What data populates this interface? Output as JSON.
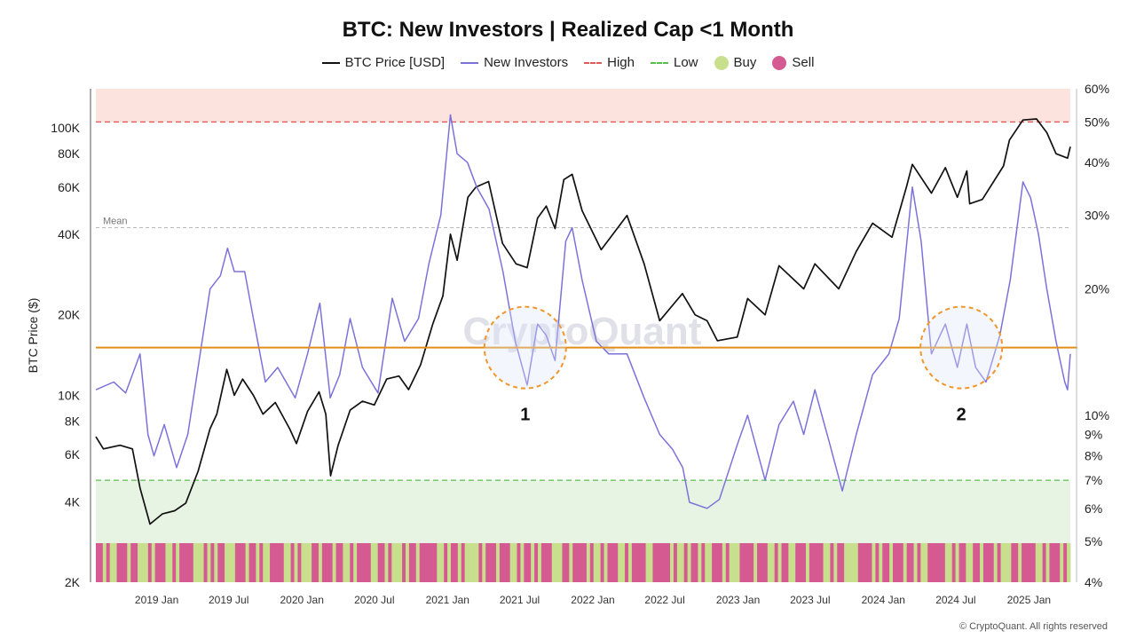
{
  "chart_data": {
    "type": "line",
    "title": "BTC: New Investors | Realized Cap <1 Month",
    "ylabel": "BTC Price ($)",
    "y_left_scale": "log",
    "y_left_range": [
      2000,
      140000
    ],
    "y_left_ticks": [
      {
        "v": 100000,
        "label": "100K"
      },
      {
        "v": 80000,
        "label": "80K"
      },
      {
        "v": 60000,
        "label": "60K"
      },
      {
        "v": 40000,
        "label": "40K"
      },
      {
        "v": 20000,
        "label": "20K"
      },
      {
        "v": 10000,
        "label": "10K"
      },
      {
        "v": 8000,
        "label": "8K"
      },
      {
        "v": 6000,
        "label": "6K"
      },
      {
        "v": 4000,
        "label": "4K"
      },
      {
        "v": 2000,
        "label": "2K"
      }
    ],
    "y_right_scale": "log",
    "y_right_range": [
      4,
      60
    ],
    "y_right_ticks": [
      {
        "v": 60,
        "label": "60%"
      },
      {
        "v": 50,
        "label": "50%"
      },
      {
        "v": 40,
        "label": "40%"
      },
      {
        "v": 30,
        "label": "30%"
      },
      {
        "v": 20,
        "label": "20%"
      },
      {
        "v": 10,
        "label": "10%"
      },
      {
        "v": 9,
        "label": "9%"
      },
      {
        "v": 8,
        "label": "8%"
      },
      {
        "v": 7,
        "label": "7%"
      },
      {
        "v": 6,
        "label": "6%"
      },
      {
        "v": 5,
        "label": "5%"
      },
      {
        "v": 4,
        "label": "4%"
      }
    ],
    "x_range": [
      "2018-08-01",
      "2025-04-15"
    ],
    "x_ticks": [
      {
        "date": "2019-01-01",
        "label": "2019 Jan"
      },
      {
        "date": "2019-07-01",
        "label": "2019 Jul"
      },
      {
        "date": "2020-01-01",
        "label": "2020 Jan"
      },
      {
        "date": "2020-07-01",
        "label": "2020 Jul"
      },
      {
        "date": "2021-01-01",
        "label": "2021 Jan"
      },
      {
        "date": "2021-07-01",
        "label": "2021 Jul"
      },
      {
        "date": "2022-01-01",
        "label": "2022 Jan"
      },
      {
        "date": "2022-07-01",
        "label": "2022 Jul"
      },
      {
        "date": "2023-01-01",
        "label": "2023 Jan"
      },
      {
        "date": "2023-07-01",
        "label": "2023 Jul"
      },
      {
        "date": "2024-01-01",
        "label": "2024 Jan"
      },
      {
        "date": "2024-07-01",
        "label": "2024 Jul"
      },
      {
        "date": "2025-01-01",
        "label": "2025 Jan"
      }
    ],
    "legend": [
      {
        "label": "BTC Price [USD]",
        "kind": "line",
        "color": "#111111"
      },
      {
        "label": "New Investors",
        "kind": "line",
        "color": "#7b72d9"
      },
      {
        "label": "High",
        "kind": "dash",
        "color": "#e05a5a"
      },
      {
        "label": "Low",
        "kind": "dash",
        "color": "#58c04a"
      },
      {
        "label": "Buy",
        "kind": "dot",
        "color": "#c8e08e"
      },
      {
        "label": "Sell",
        "kind": "dot",
        "color": "#d65a92"
      }
    ],
    "series": [
      {
        "name": "BTC Price [USD]",
        "axis": "left",
        "color": "#111111",
        "points": [
          [
            "2018-08-01",
            7000
          ],
          [
            "2018-08-20",
            6300
          ],
          [
            "2018-10-01",
            6500
          ],
          [
            "2018-11-01",
            6300
          ],
          [
            "2018-11-20",
            4500
          ],
          [
            "2018-12-15",
            3300
          ],
          [
            "2019-01-15",
            3600
          ],
          [
            "2019-02-15",
            3700
          ],
          [
            "2019-03-15",
            3950
          ],
          [
            "2019-04-15",
            5200
          ],
          [
            "2019-05-15",
            7500
          ],
          [
            "2019-06-01",
            8500
          ],
          [
            "2019-06-26",
            12500
          ],
          [
            "2019-07-15",
            10000
          ],
          [
            "2019-08-05",
            11500
          ],
          [
            "2019-09-01",
            10000
          ],
          [
            "2019-09-25",
            8500
          ],
          [
            "2019-10-26",
            9400
          ],
          [
            "2019-12-01",
            7500
          ],
          [
            "2019-12-18",
            6600
          ],
          [
            "2020-01-15",
            8700
          ],
          [
            "2020-02-13",
            10300
          ],
          [
            "2020-03-01",
            8500
          ],
          [
            "2020-03-13",
            5000
          ],
          [
            "2020-04-01",
            6500
          ],
          [
            "2020-05-01",
            8800
          ],
          [
            "2020-06-01",
            9500
          ],
          [
            "2020-07-01",
            9200
          ],
          [
            "2020-08-01",
            11500
          ],
          [
            "2020-09-01",
            11800
          ],
          [
            "2020-09-25",
            10500
          ],
          [
            "2020-10-25",
            13000
          ],
          [
            "2020-11-25",
            18500
          ],
          [
            "2020-12-20",
            23500
          ],
          [
            "2021-01-08",
            40000
          ],
          [
            "2021-01-25",
            32000
          ],
          [
            "2021-02-21",
            55000
          ],
          [
            "2021-03-13",
            60000
          ],
          [
            "2021-04-14",
            63000
          ],
          [
            "2021-05-19",
            37000
          ],
          [
            "2021-06-22",
            31000
          ],
          [
            "2021-07-20",
            30000
          ],
          [
            "2021-08-15",
            46000
          ],
          [
            "2021-09-06",
            51000
          ],
          [
            "2021-09-28",
            42000
          ],
          [
            "2021-10-20",
            64000
          ],
          [
            "2021-11-10",
            67000
          ],
          [
            "2021-12-05",
            49000
          ],
          [
            "2022-01-22",
            35000
          ],
          [
            "2022-03-28",
            47000
          ],
          [
            "2022-05-10",
            31000
          ],
          [
            "2022-06-18",
            19000
          ],
          [
            "2022-08-14",
            24000
          ],
          [
            "2022-09-15",
            20000
          ],
          [
            "2022-10-15",
            19000
          ],
          [
            "2022-11-10",
            16000
          ],
          [
            "2022-12-30",
            16500
          ],
          [
            "2023-01-25",
            23000
          ],
          [
            "2023-03-10",
            20000
          ],
          [
            "2023-04-14",
            30500
          ],
          [
            "2023-06-15",
            25000
          ],
          [
            "2023-07-13",
            31000
          ],
          [
            "2023-09-11",
            25000
          ],
          [
            "2023-10-25",
            34500
          ],
          [
            "2023-12-05",
            44000
          ],
          [
            "2024-01-23",
            39000
          ],
          [
            "2024-02-28",
            60000
          ],
          [
            "2024-03-14",
            73000
          ],
          [
            "2024-05-01",
            57000
          ],
          [
            "2024-06-05",
            71000
          ],
          [
            "2024-07-05",
            55000
          ],
          [
            "2024-07-29",
            69000
          ],
          [
            "2024-08-05",
            52000
          ],
          [
            "2024-09-06",
            54000
          ],
          [
            "2024-10-29",
            72000
          ],
          [
            "2024-11-13",
            90000
          ],
          [
            "2024-12-17",
            107000
          ],
          [
            "2025-01-20",
            108000
          ],
          [
            "2025-02-15",
            96000
          ],
          [
            "2025-03-10",
            80000
          ],
          [
            "2025-04-08",
            77000
          ],
          [
            "2025-04-15",
            85000
          ]
        ]
      },
      {
        "name": "New Investors",
        "axis": "right",
        "color": "#7b72d9",
        "points": [
          [
            "2018-08-01",
            11.5
          ],
          [
            "2018-09-15",
            12
          ],
          [
            "2018-10-15",
            11.3
          ],
          [
            "2018-11-20",
            14
          ],
          [
            "2018-12-10",
            9
          ],
          [
            "2018-12-25",
            8
          ],
          [
            "2019-01-20",
            9.5
          ],
          [
            "2019-02-20",
            7.5
          ],
          [
            "2019-03-20",
            9
          ],
          [
            "2019-04-15",
            13
          ],
          [
            "2019-05-15",
            20
          ],
          [
            "2019-06-10",
            21.5
          ],
          [
            "2019-06-28",
            25
          ],
          [
            "2019-07-15",
            22
          ],
          [
            "2019-08-10",
            22
          ],
          [
            "2019-09-01",
            17
          ],
          [
            "2019-10-01",
            12
          ],
          [
            "2019-11-01",
            13
          ],
          [
            "2019-12-15",
            11
          ],
          [
            "2020-01-15",
            14
          ],
          [
            "2020-02-15",
            18.5
          ],
          [
            "2020-03-12",
            11
          ],
          [
            "2020-04-05",
            12.5
          ],
          [
            "2020-05-01",
            17
          ],
          [
            "2020-06-01",
            13
          ],
          [
            "2020-07-10",
            11.3
          ],
          [
            "2020-08-15",
            19
          ],
          [
            "2020-09-15",
            15
          ],
          [
            "2020-10-20",
            17
          ],
          [
            "2020-11-15",
            23
          ],
          [
            "2020-12-15",
            30
          ],
          [
            "2021-01-08",
            52
          ],
          [
            "2021-01-25",
            42
          ],
          [
            "2021-02-20",
            40
          ],
          [
            "2021-03-15",
            35
          ],
          [
            "2021-04-15",
            31
          ],
          [
            "2021-05-20",
            22
          ],
          [
            "2021-06-20",
            15
          ],
          [
            "2021-07-20",
            11.8
          ],
          [
            "2021-08-15",
            16.5
          ],
          [
            "2021-09-06",
            15.5
          ],
          [
            "2021-09-28",
            13.5
          ],
          [
            "2021-10-25",
            26
          ],
          [
            "2021-11-10",
            28
          ],
          [
            "2021-12-05",
            21
          ],
          [
            "2022-01-10",
            15
          ],
          [
            "2022-02-10",
            14
          ],
          [
            "2022-03-28",
            14
          ],
          [
            "2022-05-10",
            11
          ],
          [
            "2022-06-18",
            9
          ],
          [
            "2022-07-20",
            8.3
          ],
          [
            "2022-08-15",
            7.5
          ],
          [
            "2022-09-01",
            6.2
          ],
          [
            "2022-10-15",
            6
          ],
          [
            "2022-11-15",
            6.3
          ],
          [
            "2022-12-30",
            8.5
          ],
          [
            "2023-01-25",
            10
          ],
          [
            "2023-03-10",
            7
          ],
          [
            "2023-04-14",
            9.5
          ],
          [
            "2023-05-20",
            10.8
          ],
          [
            "2023-06-15",
            9
          ],
          [
            "2023-07-13",
            11.5
          ],
          [
            "2023-08-20",
            8.5
          ],
          [
            "2023-09-20",
            6.6
          ],
          [
            "2023-10-25",
            9
          ],
          [
            "2023-12-05",
            12.5
          ],
          [
            "2024-01-15",
            14
          ],
          [
            "2024-02-10",
            17
          ],
          [
            "2024-03-14",
            35
          ],
          [
            "2024-04-05",
            26
          ],
          [
            "2024-05-01",
            14
          ],
          [
            "2024-06-05",
            16.5
          ],
          [
            "2024-07-05",
            13
          ],
          [
            "2024-07-29",
            16.5
          ],
          [
            "2024-08-20",
            13
          ],
          [
            "2024-09-15",
            12
          ],
          [
            "2024-10-20",
            15.5
          ],
          [
            "2024-11-15",
            21
          ],
          [
            "2024-12-17",
            36
          ],
          [
            "2025-01-05",
            33
          ],
          [
            "2025-01-25",
            27
          ],
          [
            "2025-02-15",
            20
          ],
          [
            "2025-03-10",
            15
          ],
          [
            "2025-04-01",
            12
          ],
          [
            "2025-04-08",
            11.5
          ],
          [
            "2025-04-15",
            14
          ]
        ]
      }
    ],
    "levels": {
      "high": 50,
      "low": 7,
      "mean": 28,
      "threshold": 14.5
    },
    "mean_label": "Mean",
    "annotations": [
      {
        "label": "1",
        "center_date": "2021-07-15",
        "center_value": 14.5
      },
      {
        "label": "2",
        "center_date": "2024-07-15",
        "center_value": 14.5
      }
    ],
    "signal_band": {
      "buy_color": "#c8e08e",
      "sell_color": "#d65a92",
      "pattern": "SSBSBBSSSBSSBBBSBSSSBBSBSSSSBBBSBSBSSBBBSSSBSSBSBBSSSSBBSBSBBBSSBSSSBSSBBSBSSSSBBSSBSBBBSBSSBSSSSSBBSBSSBSBBBBSBSSSBSSSBBSBSSBSBSSSBBBSSBSSSSBSBBSBSSSBBSBSSSSBBSSSSSBSBBSBSSBSBBSSSBSBBBSSSSBSSSBBSBSSBBSSSBSSSSBBSBSSBBBBSSSSBSBSSBSSSBSSBSBBSSSSSBBSBSSBBSSBSSSBSBBBSSBSSSSBBSBSSSBSB"
    },
    "watermark": "CryptoQuant",
    "copyright": "© CryptoQuant. All rights reserved"
  }
}
